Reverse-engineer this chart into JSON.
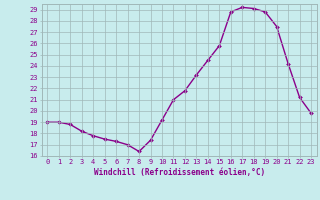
{
  "x": [
    0,
    1,
    2,
    3,
    4,
    5,
    6,
    7,
    8,
    9,
    10,
    11,
    12,
    13,
    14,
    15,
    16,
    17,
    18,
    19,
    20,
    21,
    22,
    23
  ],
  "y": [
    19,
    19,
    18.8,
    18.2,
    17.8,
    17.5,
    17.3,
    17.0,
    16.4,
    17.4,
    19.2,
    21.0,
    21.8,
    23.2,
    24.5,
    25.8,
    28.8,
    29.2,
    29.1,
    28.8,
    27.5,
    24.2,
    21.2,
    19.8
  ],
  "line_color": "#8B008B",
  "marker": "D",
  "marker_size": 2,
  "background_color": "#c8eced",
  "grid_color": "#a0b8b8",
  "xlabel": "Windchill (Refroidissement éolien,°C)",
  "ylim": [
    16,
    29.5
  ],
  "xlim": [
    -0.5,
    23.5
  ],
  "yticks": [
    16,
    17,
    18,
    19,
    20,
    21,
    22,
    23,
    24,
    25,
    26,
    27,
    28,
    29
  ],
  "xticks": [
    0,
    1,
    2,
    3,
    4,
    5,
    6,
    7,
    8,
    9,
    10,
    11,
    12,
    13,
    14,
    15,
    16,
    17,
    18,
    19,
    20,
    21,
    22,
    23
  ],
  "label_fontsize": 5.5,
  "tick_fontsize": 5,
  "line_width": 1.0
}
